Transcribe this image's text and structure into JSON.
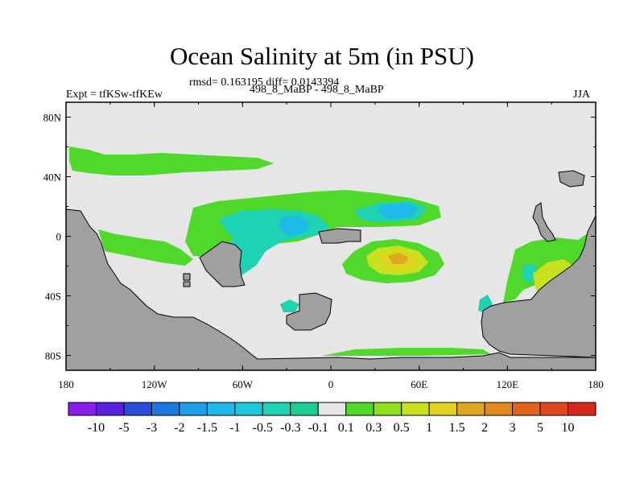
{
  "title": "Ocean Salinity at 5m (in PSU)",
  "stats": "rmsd= 0.163195 diff= 0.0143394",
  "case_label": "498_8_MaBP - 498_8_MaBP",
  "experiment": "Expt = tfKSw-tfKEw",
  "season": "JJA",
  "x_ticks": [
    "180",
    "120W",
    "60W",
    "0",
    "60E",
    "120E",
    "180"
  ],
  "y_ticks": [
    "80N",
    "40N",
    "0",
    "40S",
    "80S"
  ],
  "colorbar": {
    "labels": [
      "-10",
      "-5",
      "-3",
      "-2",
      "-1.5",
      "-1",
      "-0.5",
      "-0.3",
      "-0.1",
      "0.1",
      "0.3",
      "0.5",
      "1",
      "1.5",
      "2",
      "3",
      "5",
      "10"
    ],
    "colors": [
      "#8a1ee8",
      "#5a22e0",
      "#2a4cd8",
      "#1e78e0",
      "#1e9ee8",
      "#1ebae8",
      "#1ec8d8",
      "#1ed2b4",
      "#1ecc96",
      "#e6e6e6",
      "#50d82a",
      "#8ee01e",
      "#c8e01e",
      "#e0d21e",
      "#e0a81e",
      "#e08a1e",
      "#e0641e",
      "#e0461e",
      "#d8281e"
    ]
  },
  "map_colors": {
    "land": "#a0a0a0",
    "ocean_neutral": "#e6e6e6",
    "low_positive": "#50d82a",
    "low_negative": "#1ed2b4",
    "mid_negative": "#1ebae8",
    "mid_positive": "#c8e01e",
    "high_positive": "#e0a81e"
  }
}
